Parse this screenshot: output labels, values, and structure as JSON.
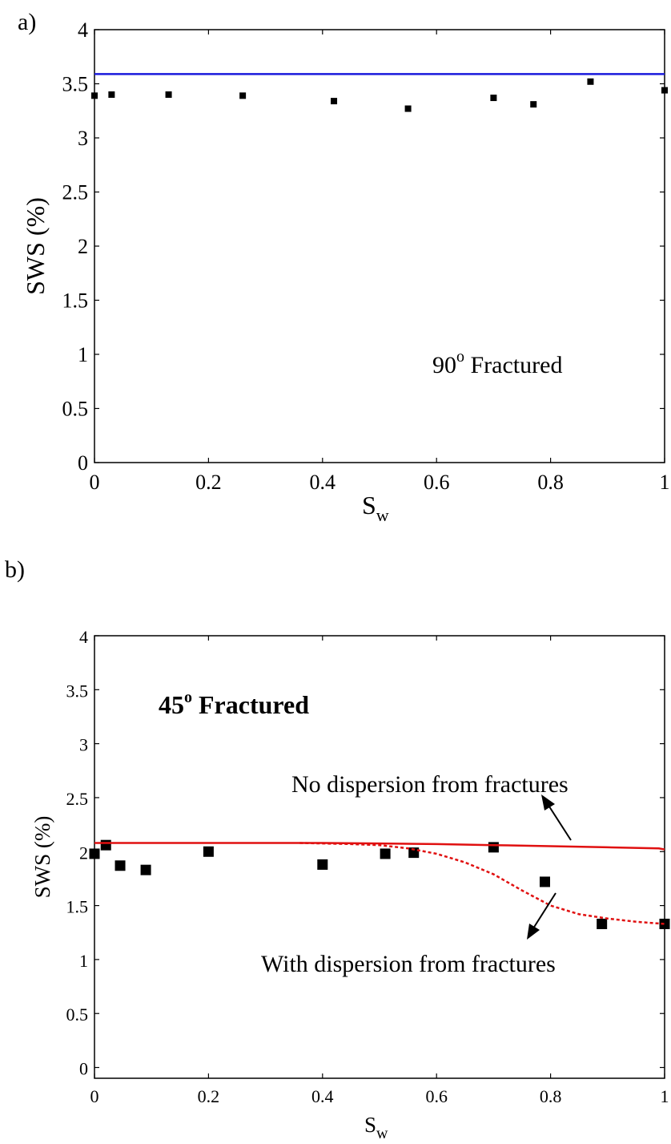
{
  "chart_data": [
    {
      "panel_label": "a)",
      "type": "scatter",
      "xlabel": "S",
      "xlabel_sub": "w",
      "ylabel": "SWS (%)",
      "xlim": [
        0,
        1
      ],
      "ylim": [
        0,
        4
      ],
      "xticks": [
        "0",
        "0.2",
        "0.4",
        "0.6",
        "0.8",
        "1"
      ],
      "yticks": [
        "0",
        "0.5",
        "1",
        "1.5",
        "2",
        "2.5",
        "3",
        "3.5",
        "4"
      ],
      "annotation": "90",
      "annotation_sup": "o",
      "annotation_rest": " Fractured",
      "series": [
        {
          "kind": "points",
          "color": "#000000",
          "x": [
            0.0,
            0.03,
            0.13,
            0.26,
            0.42,
            0.55,
            0.7,
            0.77,
            0.87,
            1.0
          ],
          "y": [
            3.39,
            3.4,
            3.4,
            3.39,
            3.34,
            3.27,
            3.37,
            3.31,
            3.52,
            3.44
          ]
        },
        {
          "kind": "line",
          "color": "#1a1adc",
          "x": [
            0.0,
            1.0
          ],
          "y": [
            3.59,
            3.59
          ]
        }
      ]
    },
    {
      "panel_label": "b)",
      "type": "scatter",
      "xlabel": "S",
      "xlabel_sub": "w",
      "ylabel": "SWS (%)",
      "xlim": [
        0,
        1
      ],
      "ylim": [
        -0.1,
        4
      ],
      "xticks": [
        "0",
        "0.2",
        "0.4",
        "0.6",
        "0.8",
        "1"
      ],
      "yticks": [
        "0",
        "0.5",
        "1",
        "1.5",
        "2",
        "2.5",
        "3",
        "3.5",
        "4"
      ],
      "annotation": "45",
      "annotation_sup": "o",
      "annotation_rest": " Fractured",
      "label_no_dispersion": "No dispersion from fractures",
      "label_with_dispersion": "With dispersion from fractures",
      "series": [
        {
          "kind": "points",
          "color": "#000000",
          "x": [
            0.0,
            0.02,
            0.045,
            0.09,
            0.2,
            0.4,
            0.51,
            0.56,
            0.7,
            0.79,
            0.89,
            1.0
          ],
          "y": [
            1.98,
            2.06,
            1.87,
            1.83,
            2.0,
            1.88,
            1.98,
            1.99,
            2.04,
            1.72,
            1.33,
            1.33
          ]
        },
        {
          "kind": "line",
          "color": "#e01010",
          "dash": false,
          "x": [
            0.0,
            0.2,
            0.4,
            0.5,
            0.6,
            0.7,
            0.8,
            0.9,
            0.99,
            1.0
          ],
          "y": [
            2.08,
            2.08,
            2.08,
            2.075,
            2.07,
            2.06,
            2.05,
            2.04,
            2.03,
            2.02
          ]
        },
        {
          "kind": "line",
          "color": "#e01010",
          "dash": true,
          "x": [
            0.36,
            0.45,
            0.5,
            0.55,
            0.6,
            0.65,
            0.7,
            0.75,
            0.8,
            0.85,
            0.9,
            0.95,
            1.0
          ],
          "y": [
            2.08,
            2.07,
            2.06,
            2.03,
            1.98,
            1.9,
            1.79,
            1.64,
            1.5,
            1.42,
            1.38,
            1.35,
            1.33
          ]
        }
      ]
    }
  ]
}
